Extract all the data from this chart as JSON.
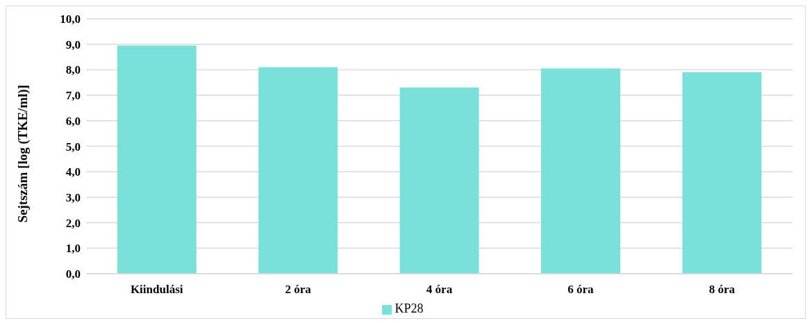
{
  "chart_data": {
    "type": "bar",
    "ylabel": "Sejtszám [log (TKE/ml)]",
    "categories": [
      "Kiindulási",
      "2 óra",
      "4 óra",
      "6 óra",
      "8 óra"
    ],
    "series": [
      {
        "name": "KP28",
        "color": "#7ae1da",
        "values": [
          8.95,
          8.1,
          7.3,
          8.05,
          7.9
        ]
      }
    ],
    "ylim": [
      0,
      10
    ],
    "yticks": [
      {
        "value": 0,
        "label": "0,0"
      },
      {
        "value": 1,
        "label": "1,0"
      },
      {
        "value": 2,
        "label": "2,0"
      },
      {
        "value": 3,
        "label": "3,0"
      },
      {
        "value": 4,
        "label": "4,0"
      },
      {
        "value": 5,
        "label": "5,0"
      },
      {
        "value": 6,
        "label": "6,0"
      },
      {
        "value": 7,
        "label": "7,0"
      },
      {
        "value": 8,
        "label": "8,0"
      },
      {
        "value": 9,
        "label": "9,0"
      },
      {
        "value": 10,
        "label": "10,0"
      }
    ],
    "grid": "y",
    "legend": "bottom"
  }
}
